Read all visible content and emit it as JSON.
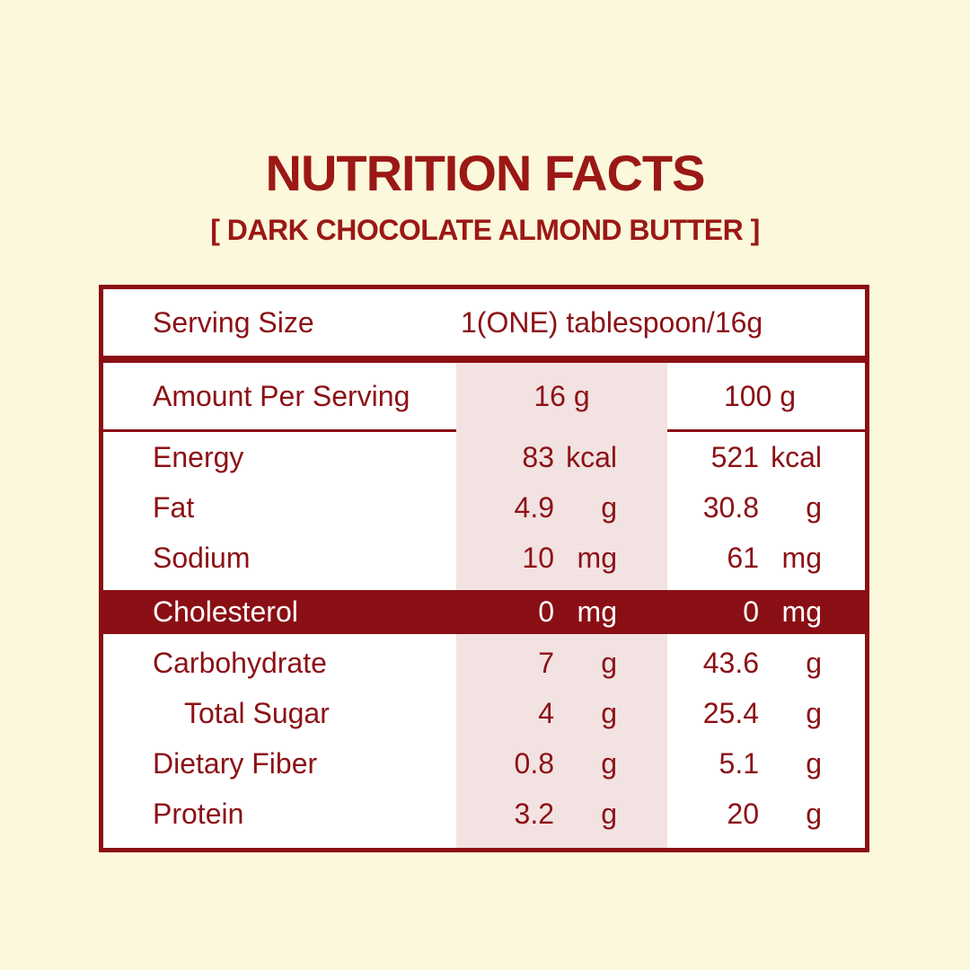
{
  "colors": {
    "background": "#FBF8DC",
    "maroon": "#8A0F14",
    "text_red": "#8C1116",
    "title_red": "#9B1815",
    "highlight_column_pink": "#F2E2E2",
    "table_background": "#FFFFFF",
    "highlight_row_text": "#FFFFFF"
  },
  "header": {
    "title": "NUTRITION FACTS",
    "subtitle": "[ DARK CHOCOLATE ALMOND BUTTER ]"
  },
  "table": {
    "serving": {
      "label": "Serving Size",
      "value": "1(ONE) tablespoon/16g"
    },
    "columns": {
      "label": "Amount Per Serving",
      "col1": "16 g",
      "col2": "100 g"
    },
    "rows": [
      {
        "label": "Energy",
        "value_16g": "83",
        "unit_16g": "kcal",
        "value_100g": "521",
        "unit_100g": "kcal",
        "indent": false,
        "highlight": false
      },
      {
        "label": "Fat",
        "value_16g": "4.9",
        "unit_16g": "g",
        "value_100g": "30.8",
        "unit_100g": "g",
        "indent": false,
        "highlight": false
      },
      {
        "label": "Sodium",
        "value_16g": "10",
        "unit_16g": "mg",
        "value_100g": "61",
        "unit_100g": "mg",
        "indent": false,
        "highlight": false
      },
      {
        "label": "Cholesterol",
        "value_16g": "0",
        "unit_16g": "mg",
        "value_100g": "0",
        "unit_100g": "mg",
        "indent": false,
        "highlight": true
      },
      {
        "label": "Carbohydrate",
        "value_16g": "7",
        "unit_16g": "g",
        "value_100g": "43.6",
        "unit_100g": "g",
        "indent": false,
        "highlight": false
      },
      {
        "label": "Total Sugar",
        "value_16g": "4",
        "unit_16g": "g",
        "value_100g": "25.4",
        "unit_100g": "g",
        "indent": true,
        "highlight": false
      },
      {
        "label": "Dietary Fiber",
        "value_16g": "0.8",
        "unit_16g": "g",
        "value_100g": "5.1",
        "unit_100g": "g",
        "indent": false,
        "highlight": false
      },
      {
        "label": "Protein",
        "value_16g": "3.2",
        "unit_16g": "g",
        "value_100g": "20",
        "unit_100g": "g",
        "indent": false,
        "highlight": false
      }
    ]
  }
}
